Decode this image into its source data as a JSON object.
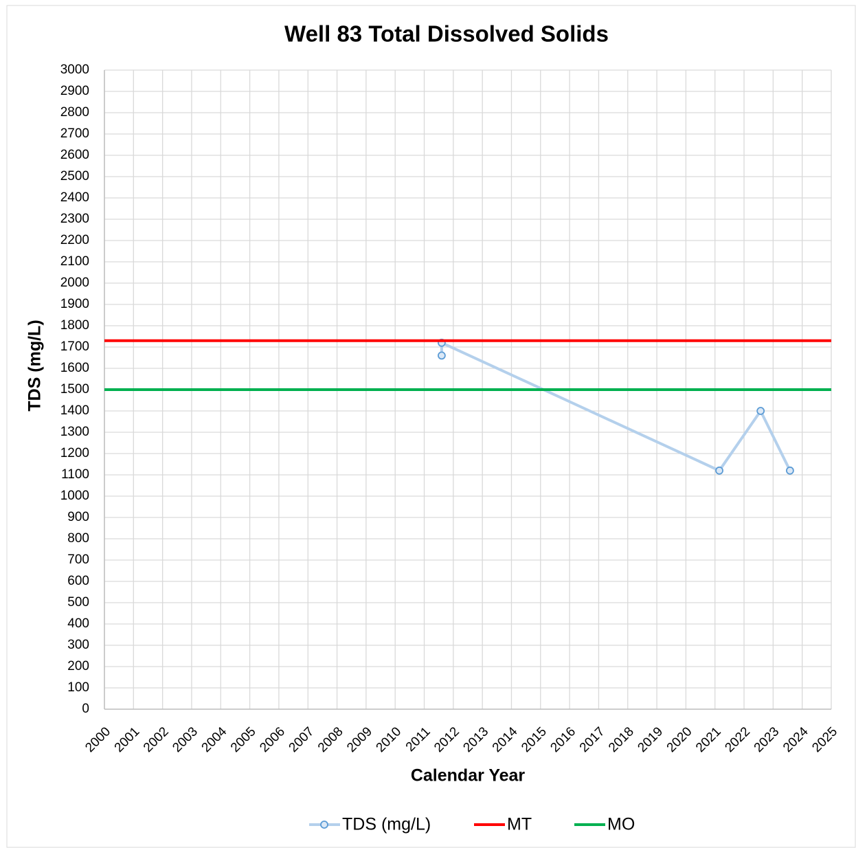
{
  "chart_data": {
    "type": "line",
    "title": "Well 83 Total Dissolved Solids",
    "x_label": "Calendar Year",
    "y_label": "TDS (mg/L)",
    "xlim": [
      2000,
      2025
    ],
    "xticks": [
      2000,
      2001,
      2002,
      2003,
      2004,
      2005,
      2006,
      2007,
      2008,
      2009,
      2010,
      2011,
      2012,
      2013,
      2014,
      2015,
      2016,
      2017,
      2018,
      2019,
      2020,
      2021,
      2022,
      2023,
      2024,
      2025
    ],
    "ylim": [
      0,
      3000
    ],
    "yticks": [
      0,
      100,
      200,
      300,
      400,
      500,
      600,
      700,
      800,
      900,
      1000,
      1100,
      1200,
      1300,
      1400,
      1500,
      1600,
      1700,
      1800,
      1900,
      2000,
      2100,
      2200,
      2300,
      2400,
      2500,
      2600,
      2700,
      2800,
      2900,
      3000
    ],
    "grid": true,
    "legend": "bottom",
    "series": [
      {
        "name": "TDS (mg/L)",
        "color": "#b4d0ec",
        "marker_color": "#5b9bd5",
        "markers": true,
        "x": [
          2011.6,
          2011.6,
          2021.15,
          2022.57,
          2023.58
        ],
        "values": [
          1660,
          1720,
          1120,
          1400,
          1120
        ]
      },
      {
        "name": "MT",
        "color": "#ff0000",
        "markers": false,
        "x": [
          2000,
          2025
        ],
        "values": [
          1730,
          1730
        ]
      },
      {
        "name": "MO",
        "color": "#00b050",
        "markers": false,
        "x": [
          2000,
          2025
        ],
        "values": [
          1500,
          1500
        ]
      }
    ]
  }
}
